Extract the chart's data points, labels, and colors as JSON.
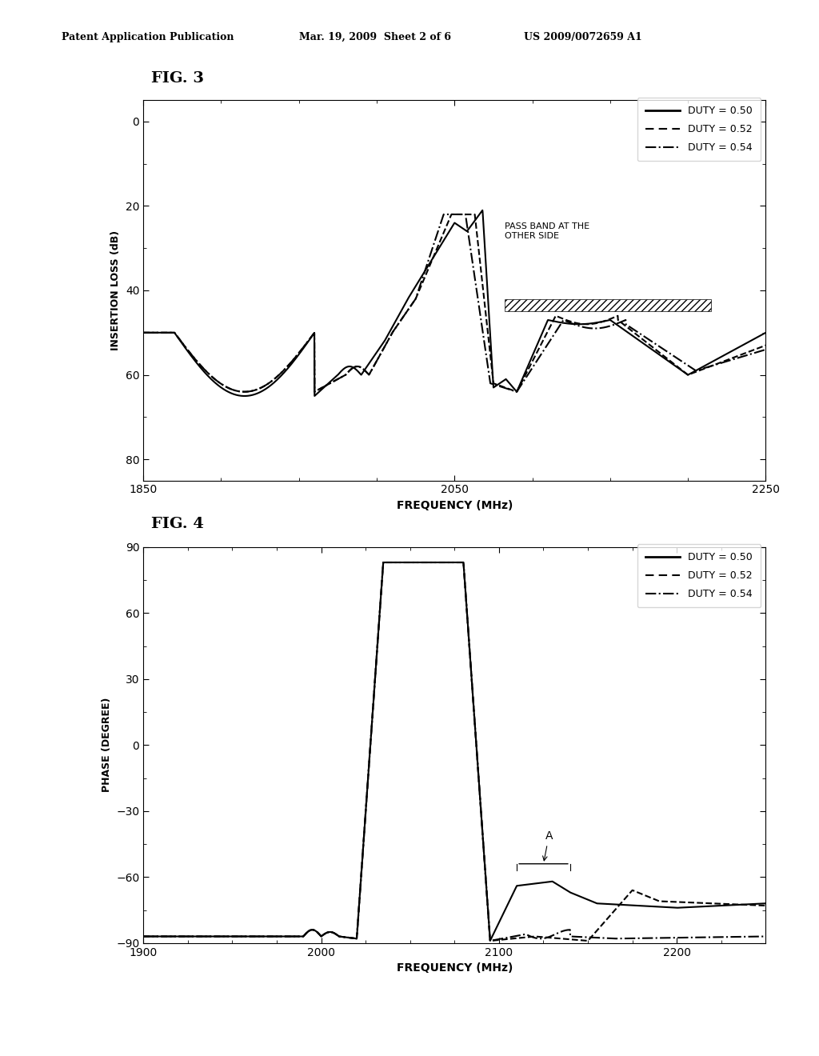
{
  "fig3": {
    "title": "FIG. 3",
    "xlabel": "FREQUENCY (MHz)",
    "ylabel": "INSERTION LOSS (dB)",
    "xlim": [
      1850,
      2250
    ],
    "ylim": [
      85,
      -5
    ],
    "yticks": [
      0,
      20,
      40,
      60,
      80
    ],
    "xticks": [
      1850,
      2050,
      2250
    ],
    "passband_label": "PASS BAND AT THE\nOTHER SIDE"
  },
  "fig4": {
    "title": "FIG. 4",
    "xlabel": "FREQUENCY (MHz)",
    "ylabel": "PHASE (DEGREE)",
    "xlim": [
      1900,
      2250
    ],
    "ylim": [
      -90,
      90
    ],
    "yticks": [
      -90,
      -60,
      -30,
      0,
      30,
      60,
      90
    ],
    "xticks": [
      1900,
      2000,
      2100,
      2200
    ],
    "annotation_label": "A"
  },
  "legend_entries": [
    "DUTY = 0.50",
    "DUTY = 0.52",
    "DUTY = 0.54"
  ],
  "background_color": "#ffffff",
  "header_left": "Patent Application Publication",
  "header_mid": "Mar. 19, 2009  Sheet 2 of 6",
  "header_right": "US 2009/0072659 A1"
}
